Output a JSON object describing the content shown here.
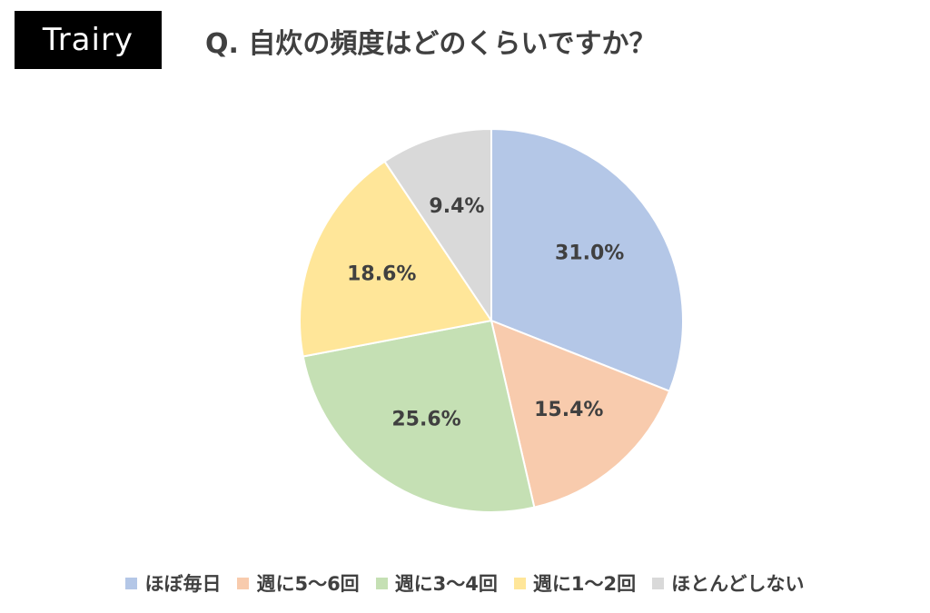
{
  "brand": {
    "label": "Trairy"
  },
  "chart_data": {
    "type": "pie",
    "title": "Q. 自炊の頻度はどのくらいですか？",
    "categories": [
      "ほぼ毎日",
      "週に5～6回",
      "週に3～4回",
      "週に1～2回",
      "ほとんどしない"
    ],
    "values": [
      31.0,
      15.4,
      25.6,
      18.6,
      9.4
    ],
    "data_labels": [
      "31.0%",
      "15.4%",
      "25.6%",
      "18.6%",
      "9.4%"
    ],
    "colors": [
      "#b4c7e7",
      "#f8cbad",
      "#c5e0b4",
      "#ffe699",
      "#d9d9d9"
    ],
    "start": "12 o'clock, clockwise",
    "legend_position": "bottom"
  }
}
